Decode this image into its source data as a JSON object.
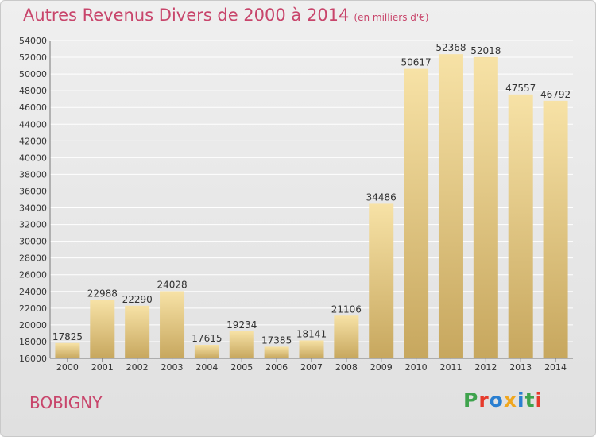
{
  "header": {
    "title": "Autres Revenus Divers de 2000 à 2014",
    "subtitle": "(en milliers d'€)"
  },
  "footer": {
    "commune": "BOBIGNY",
    "logo_letters": [
      "P",
      "r",
      "o",
      "x",
      "i",
      "t",
      "i"
    ],
    "logo_colors": [
      "#3fa34d",
      "#e63a2b",
      "#2a7fd1",
      "#f0a71f",
      "#2a7fd1",
      "#3fa34d",
      "#e63a2b"
    ]
  },
  "colors": {
    "bar_light": "#f7e2a6",
    "bar_dark": "#c7a75e",
    "grid": "#ffffff",
    "axis": "#777777"
  },
  "chart_data": {
    "type": "bar",
    "title": "Autres Revenus Divers de 2000 à 2014",
    "subtitle": "(en milliers d'€)",
    "categories": [
      "2000",
      "2001",
      "2002",
      "2003",
      "2004",
      "2005",
      "2006",
      "2007",
      "2008",
      "2009",
      "2010",
      "2011",
      "2012",
      "2013",
      "2014"
    ],
    "values": [
      17825,
      22988,
      22290,
      24028,
      17615,
      19234,
      17385,
      18141,
      21106,
      34486,
      50617,
      52368,
      52018,
      47557,
      46792
    ],
    "ylim": [
      16000,
      54000
    ],
    "ytick_step": 2000,
    "grid": true,
    "xlabel": "",
    "ylabel": ""
  }
}
